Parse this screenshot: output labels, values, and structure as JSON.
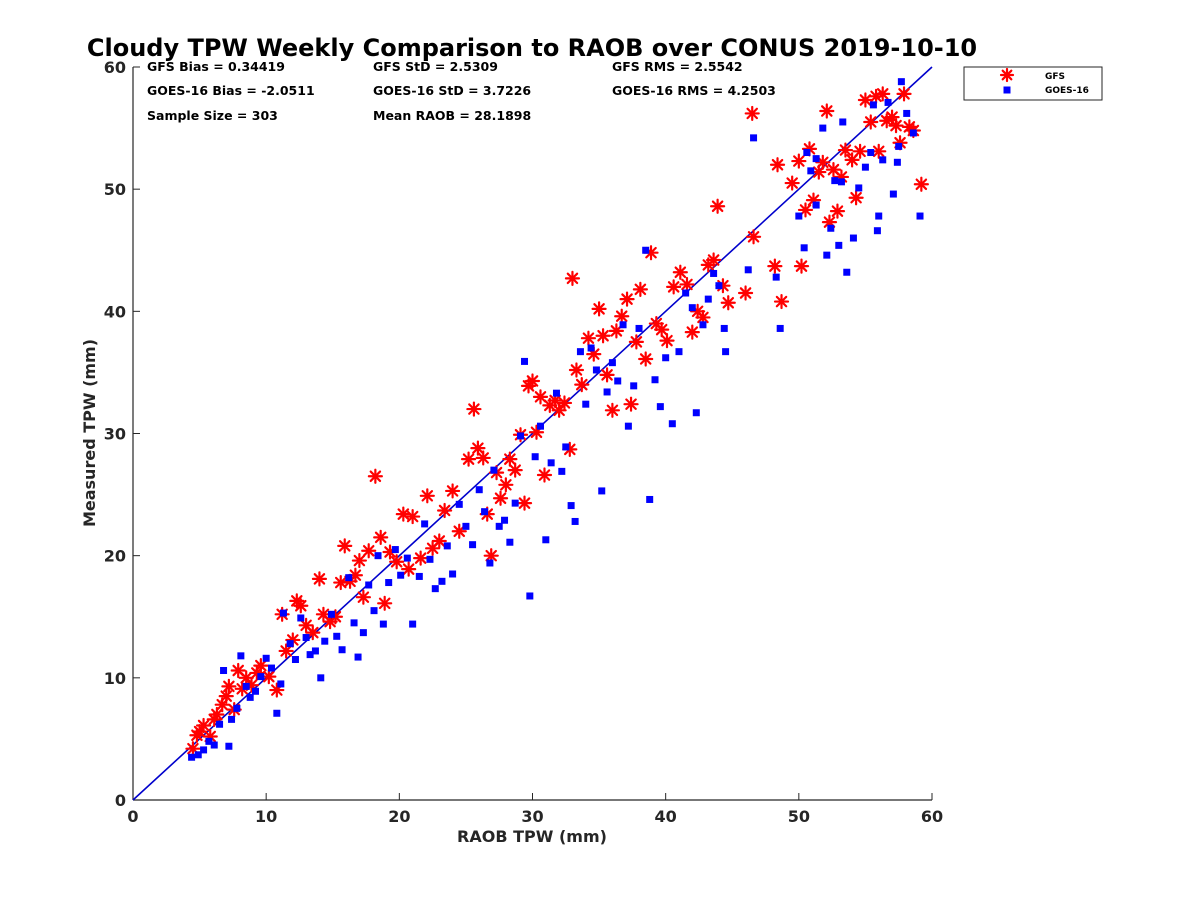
{
  "chart_data": {
    "type": "scatter",
    "title": "Cloudy TPW Weekly Comparison to RAOB over CONUS 2019-10-10",
    "xlabel": "RAOB TPW (mm)",
    "ylabel": "Measured TPW (mm)",
    "xlim": [
      0,
      60
    ],
    "ylim": [
      0,
      60
    ],
    "xticks": [
      "0",
      "10",
      "20",
      "30",
      "40",
      "50",
      "60"
    ],
    "yticks": [
      "0",
      "10",
      "20",
      "30",
      "40",
      "50",
      "60"
    ],
    "grid": false,
    "legend_position": "top-right outside",
    "reference_line": {
      "x": [
        0,
        60
      ],
      "y": [
        0,
        60
      ],
      "color": "#0000cc"
    },
    "stats": {
      "gfs_bias": "GFS Bias = 0.34419",
      "gfs_std": "GFS StD = 2.5309",
      "gfs_rms": "GFS RMS = 2.5542",
      "goes_bias": "GOES-16 Bias = -2.0511",
      "goes_std": "GOES-16 StD = 3.7226",
      "goes_rms": "GOES-16 RMS = 4.2503",
      "sample_size": "Sample Size = 303",
      "mean_raob": "Mean RAOB = 28.1898"
    },
    "series": [
      {
        "name": "GFS",
        "marker": "asterisk",
        "color": "#ff0000",
        "points": [
          [
            4.5,
            4.2
          ],
          [
            4.8,
            5.3
          ],
          [
            5.0,
            5.6
          ],
          [
            5.3,
            6.1
          ],
          [
            5.8,
            5.2
          ],
          [
            6.1,
            6.6
          ],
          [
            6.3,
            7.0
          ],
          [
            6.7,
            7.8
          ],
          [
            7.0,
            8.5
          ],
          [
            7.2,
            9.3
          ],
          [
            7.6,
            7.4
          ],
          [
            7.9,
            10.6
          ],
          [
            8.2,
            9.1
          ],
          [
            8.5,
            10.0
          ],
          [
            8.9,
            9.4
          ],
          [
            9.3,
            10.4
          ],
          [
            9.6,
            11.0
          ],
          [
            10.2,
            10.1
          ],
          [
            10.8,
            9.0
          ],
          [
            11.2,
            15.2
          ],
          [
            11.5,
            12.2
          ],
          [
            12.0,
            13.1
          ],
          [
            12.3,
            16.3
          ],
          [
            12.6,
            15.9
          ],
          [
            13.0,
            14.3
          ],
          [
            13.5,
            13.7
          ],
          [
            14.0,
            18.1
          ],
          [
            14.3,
            15.2
          ],
          [
            14.8,
            14.6
          ],
          [
            15.2,
            15.0
          ],
          [
            15.6,
            17.8
          ],
          [
            15.9,
            20.8
          ],
          [
            16.3,
            17.9
          ],
          [
            16.7,
            18.4
          ],
          [
            17.0,
            19.6
          ],
          [
            17.3,
            16.6
          ],
          [
            17.7,
            20.4
          ],
          [
            18.2,
            26.5
          ],
          [
            18.6,
            21.5
          ],
          [
            18.9,
            16.1
          ],
          [
            19.3,
            20.3
          ],
          [
            19.8,
            19.5
          ],
          [
            20.3,
            23.4
          ],
          [
            20.7,
            18.9
          ],
          [
            21.0,
            23.2
          ],
          [
            21.6,
            19.8
          ],
          [
            22.1,
            24.9
          ],
          [
            22.5,
            20.6
          ],
          [
            23.0,
            21.2
          ],
          [
            23.4,
            23.7
          ],
          [
            24.0,
            25.3
          ],
          [
            24.5,
            22.0
          ],
          [
            25.2,
            27.9
          ],
          [
            25.6,
            32.0
          ],
          [
            25.9,
            28.8
          ],
          [
            26.3,
            28.0
          ],
          [
            26.6,
            23.4
          ],
          [
            26.9,
            20.0
          ],
          [
            27.3,
            26.8
          ],
          [
            27.6,
            24.7
          ],
          [
            28.0,
            25.8
          ],
          [
            28.3,
            27.9
          ],
          [
            28.7,
            27.0
          ],
          [
            29.1,
            29.9
          ],
          [
            29.4,
            24.3
          ],
          [
            29.7,
            33.9
          ],
          [
            30.0,
            34.3
          ],
          [
            30.3,
            30.1
          ],
          [
            30.6,
            33.0
          ],
          [
            30.9,
            26.6
          ],
          [
            31.3,
            32.3
          ],
          [
            31.7,
            32.7
          ],
          [
            32.0,
            31.9
          ],
          [
            32.4,
            32.5
          ],
          [
            32.8,
            28.7
          ],
          [
            33.0,
            42.7
          ],
          [
            33.3,
            35.2
          ],
          [
            33.7,
            34.0
          ],
          [
            34.2,
            37.8
          ],
          [
            34.6,
            36.5
          ],
          [
            35.0,
            40.2
          ],
          [
            35.3,
            38.0
          ],
          [
            35.6,
            34.8
          ],
          [
            36.0,
            31.9
          ],
          [
            36.3,
            38.4
          ],
          [
            36.7,
            39.6
          ],
          [
            37.1,
            41.0
          ],
          [
            37.4,
            32.4
          ],
          [
            37.8,
            37.5
          ],
          [
            38.1,
            41.8
          ],
          [
            38.5,
            36.1
          ],
          [
            38.9,
            44.8
          ],
          [
            39.3,
            39.0
          ],
          [
            39.7,
            38.5
          ],
          [
            40.1,
            37.6
          ],
          [
            40.6,
            42.0
          ],
          [
            41.1,
            43.2
          ],
          [
            41.6,
            42.2
          ],
          [
            42.0,
            38.3
          ],
          [
            42.4,
            40.0
          ],
          [
            42.8,
            39.5
          ],
          [
            43.2,
            43.8
          ],
          [
            43.6,
            44.2
          ],
          [
            43.9,
            48.6
          ],
          [
            44.3,
            42.1
          ],
          [
            44.7,
            40.7
          ],
          [
            46.0,
            41.5
          ],
          [
            46.5,
            56.2
          ],
          [
            46.6,
            46.1
          ],
          [
            48.2,
            43.7
          ],
          [
            48.4,
            52.0
          ],
          [
            48.7,
            40.8
          ],
          [
            49.5,
            50.5
          ],
          [
            50.0,
            52.3
          ],
          [
            50.2,
            43.7
          ],
          [
            50.5,
            48.3
          ],
          [
            50.8,
            53.3
          ],
          [
            51.1,
            49.1
          ],
          [
            51.5,
            51.4
          ],
          [
            51.8,
            52.2
          ],
          [
            52.1,
            56.4
          ],
          [
            52.3,
            47.3
          ],
          [
            52.6,
            51.6
          ],
          [
            52.9,
            48.2
          ],
          [
            53.2,
            51.0
          ],
          [
            53.5,
            53.2
          ],
          [
            54.0,
            52.4
          ],
          [
            54.3,
            49.3
          ],
          [
            54.6,
            53.1
          ],
          [
            55.0,
            57.3
          ],
          [
            55.4,
            55.5
          ],
          [
            55.8,
            57.6
          ],
          [
            56.0,
            53.1
          ],
          [
            56.3,
            57.8
          ],
          [
            56.6,
            55.6
          ],
          [
            57.0,
            55.9
          ],
          [
            57.3,
            55.2
          ],
          [
            57.6,
            53.8
          ],
          [
            57.9,
            57.8
          ],
          [
            58.3,
            55.1
          ],
          [
            58.6,
            54.8
          ],
          [
            59.2,
            50.4
          ]
        ]
      },
      {
        "name": "GOES-16",
        "marker": "square",
        "color": "#0000ff",
        "points": [
          [
            4.4,
            3.5
          ],
          [
            4.9,
            3.7
          ],
          [
            5.3,
            4.1
          ],
          [
            5.7,
            4.8
          ],
          [
            6.1,
            4.5
          ],
          [
            6.5,
            6.2
          ],
          [
            6.8,
            10.6
          ],
          [
            7.2,
            4.4
          ],
          [
            7.4,
            6.6
          ],
          [
            7.8,
            7.5
          ],
          [
            8.1,
            11.8
          ],
          [
            8.5,
            9.3
          ],
          [
            8.8,
            8.4
          ],
          [
            9.2,
            8.9
          ],
          [
            9.6,
            10.1
          ],
          [
            10.0,
            11.6
          ],
          [
            10.4,
            10.8
          ],
          [
            10.8,
            7.1
          ],
          [
            11.1,
            9.5
          ],
          [
            11.3,
            15.3
          ],
          [
            11.8,
            12.8
          ],
          [
            12.2,
            11.5
          ],
          [
            12.6,
            14.9
          ],
          [
            13.0,
            13.3
          ],
          [
            13.3,
            11.9
          ],
          [
            13.7,
            12.2
          ],
          [
            14.1,
            10.0
          ],
          [
            14.4,
            13.0
          ],
          [
            14.9,
            15.2
          ],
          [
            15.3,
            13.4
          ],
          [
            15.7,
            12.3
          ],
          [
            16.2,
            18.2
          ],
          [
            16.6,
            14.5
          ],
          [
            16.9,
            11.7
          ],
          [
            17.3,
            13.7
          ],
          [
            17.7,
            17.6
          ],
          [
            18.1,
            15.5
          ],
          [
            18.4,
            20.0
          ],
          [
            18.8,
            14.4
          ],
          [
            19.2,
            17.8
          ],
          [
            19.7,
            20.5
          ],
          [
            20.1,
            18.4
          ],
          [
            20.6,
            19.8
          ],
          [
            21.0,
            14.4
          ],
          [
            21.5,
            18.3
          ],
          [
            21.9,
            22.6
          ],
          [
            22.3,
            19.7
          ],
          [
            22.7,
            17.3
          ],
          [
            23.2,
            17.9
          ],
          [
            23.6,
            20.8
          ],
          [
            24.0,
            18.5
          ],
          [
            24.5,
            24.2
          ],
          [
            25.0,
            22.4
          ],
          [
            25.5,
            20.9
          ],
          [
            26.0,
            25.4
          ],
          [
            26.4,
            23.6
          ],
          [
            26.8,
            19.4
          ],
          [
            27.1,
            27.0
          ],
          [
            27.5,
            22.4
          ],
          [
            27.9,
            22.9
          ],
          [
            28.3,
            21.1
          ],
          [
            28.7,
            24.3
          ],
          [
            29.1,
            29.8
          ],
          [
            29.4,
            35.9
          ],
          [
            29.8,
            16.7
          ],
          [
            30.2,
            28.1
          ],
          [
            30.6,
            30.6
          ],
          [
            31.0,
            21.3
          ],
          [
            31.4,
            27.6
          ],
          [
            31.8,
            33.3
          ],
          [
            32.2,
            26.9
          ],
          [
            32.5,
            28.9
          ],
          [
            32.9,
            24.1
          ],
          [
            33.2,
            22.8
          ],
          [
            33.6,
            36.7
          ],
          [
            34.0,
            32.4
          ],
          [
            34.4,
            37.0
          ],
          [
            34.8,
            35.2
          ],
          [
            35.2,
            25.3
          ],
          [
            35.6,
            33.4
          ],
          [
            36.0,
            35.8
          ],
          [
            36.4,
            34.3
          ],
          [
            36.8,
            38.9
          ],
          [
            37.2,
            30.6
          ],
          [
            37.6,
            33.9
          ],
          [
            38.0,
            38.6
          ],
          [
            38.5,
            45.0
          ],
          [
            38.8,
            24.6
          ],
          [
            39.2,
            34.4
          ],
          [
            39.6,
            32.2
          ],
          [
            40.0,
            36.2
          ],
          [
            40.5,
            30.8
          ],
          [
            41.0,
            36.7
          ],
          [
            41.5,
            41.5
          ],
          [
            42.0,
            40.3
          ],
          [
            42.3,
            31.7
          ],
          [
            42.8,
            38.9
          ],
          [
            43.2,
            41.0
          ],
          [
            43.6,
            43.1
          ],
          [
            44.0,
            42.1
          ],
          [
            44.4,
            38.6
          ],
          [
            44.5,
            36.7
          ],
          [
            46.2,
            43.4
          ],
          [
            46.6,
            54.2
          ],
          [
            48.3,
            42.8
          ],
          [
            48.6,
            38.6
          ],
          [
            50.0,
            47.8
          ],
          [
            50.4,
            45.2
          ],
          [
            50.6,
            53.0
          ],
          [
            50.9,
            51.5
          ],
          [
            51.3,
            48.7
          ],
          [
            51.8,
            55.0
          ],
          [
            52.1,
            44.6
          ],
          [
            52.4,
            46.8
          ],
          [
            52.7,
            50.7
          ],
          [
            53.0,
            45.4
          ],
          [
            53.3,
            55.5
          ],
          [
            53.6,
            43.2
          ],
          [
            54.1,
            46.0
          ],
          [
            54.5,
            50.1
          ],
          [
            55.0,
            51.8
          ],
          [
            55.4,
            53.0
          ],
          [
            55.9,
            46.6
          ],
          [
            56.3,
            52.4
          ],
          [
            56.7,
            57.1
          ],
          [
            57.1,
            49.6
          ],
          [
            57.4,
            52.2
          ],
          [
            57.7,
            58.8
          ],
          [
            58.1,
            56.2
          ],
          [
            58.6,
            54.6
          ],
          [
            59.1,
            47.8
          ],
          [
            56.0,
            47.8
          ],
          [
            55.6,
            56.9
          ],
          [
            57.5,
            53.5
          ],
          [
            53.2,
            50.6
          ],
          [
            51.3,
            52.5
          ]
        ]
      }
    ]
  }
}
